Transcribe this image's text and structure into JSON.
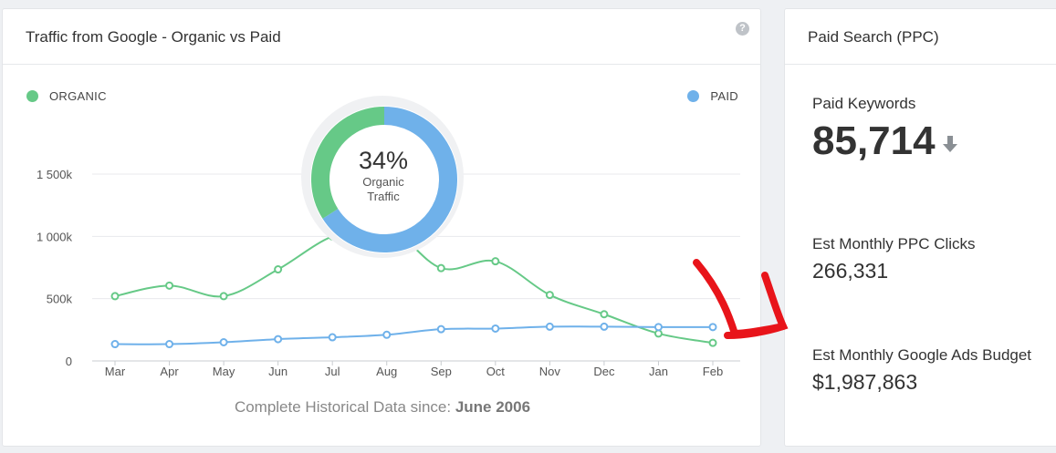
{
  "traffic_card": {
    "title": "Traffic from Google - Organic vs Paid",
    "help_glyph": "?",
    "history_prefix": "Complete Historical Data since:",
    "history_date": "June 2006"
  },
  "donut": {
    "percent_label": "34%",
    "line1": "Organic",
    "line2": "Traffic",
    "organic_share": 0.34
  },
  "ppc_card": {
    "title": "Paid Search (PPC)",
    "paid_keywords_label": "Paid Keywords",
    "paid_keywords_value": "85,714",
    "trend_icon": "arrow-down-icon",
    "clicks_label": "Est Monthly PPC Clicks",
    "clicks_value": "266,331",
    "budget_label": "Est Monthly Google Ads Budget",
    "budget_value": "$1,987,863"
  },
  "colors": {
    "organic": "#66c987",
    "paid": "#6fb1ea",
    "annotation": "#e8141a"
  },
  "chart_data": {
    "type": "line",
    "categories": [
      "Mar",
      "Apr",
      "May",
      "Jun",
      "Jul",
      "Aug",
      "Sep",
      "Oct",
      "Nov",
      "Dec",
      "Jan",
      "Feb"
    ],
    "yticks": [
      0,
      500000,
      1000000,
      1500000
    ],
    "ytick_labels": [
      "0",
      "500k",
      "1 000k",
      "1 500k"
    ],
    "ylim": [
      0,
      1500000
    ],
    "legend": [
      {
        "name": "ORGANIC",
        "placement": "top-left"
      },
      {
        "name": "PAID",
        "placement": "top-right"
      }
    ],
    "series": [
      {
        "name": "ORGANIC",
        "values": [
          520000,
          605000,
          520000,
          735000,
          1000000,
          1080000,
          745000,
          800000,
          530000,
          375000,
          220000,
          145000
        ]
      },
      {
        "name": "PAID",
        "values": [
          135000,
          135000,
          150000,
          175000,
          190000,
          210000,
          255000,
          260000,
          275000,
          275000,
          272000,
          272000
        ]
      }
    ],
    "grid": true
  }
}
